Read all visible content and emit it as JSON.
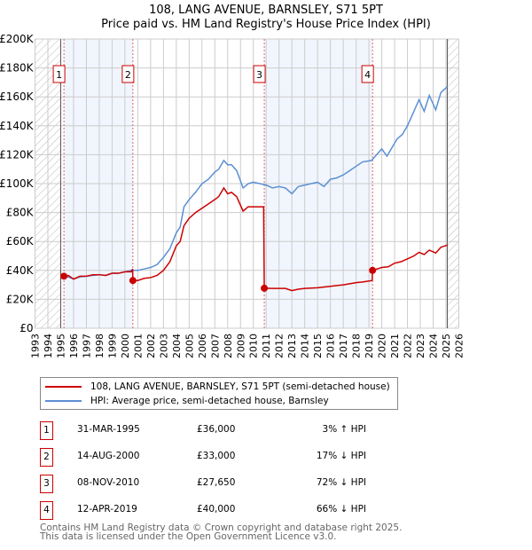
{
  "chart_data": {
    "type": "line",
    "title": "108, LANG AVENUE, BARNSLEY, S71 5PT",
    "subtitle": "Price paid vs. HM Land Registry's House Price Index (HPI)",
    "xlim": [
      1993,
      2026
    ],
    "ylim": [
      0,
      200000
    ],
    "y_ticks": [
      "£0",
      "£20K",
      "£40K",
      "£60K",
      "£80K",
      "£100K",
      "£120K",
      "£140K",
      "£160K",
      "£180K",
      "£200K"
    ],
    "x_ticks": [
      "1993",
      "1994",
      "1995",
      "1996",
      "1997",
      "1998",
      "1999",
      "2000",
      "2001",
      "2002",
      "2003",
      "2004",
      "2005",
      "2006",
      "2007",
      "2008",
      "2009",
      "2010",
      "2011",
      "2012",
      "2013",
      "2014",
      "2015",
      "2016",
      "2017",
      "2018",
      "2019",
      "2020",
      "2021",
      "2022",
      "2023",
      "2024",
      "2025",
      "2026"
    ],
    "grid": true,
    "series": [
      {
        "name": "108, LANG AVENUE, BARNSLEY, S71 5PT (semi-detached house)",
        "color": "#cc0000",
        "x": [
          1995.25,
          1995.6,
          1996,
          1996.5,
          1997,
          1997.5,
          1998,
          1998.5,
          1999,
          1999.5,
          2000,
          2000.5,
          2000.6,
          2000.62,
          2001,
          2001.5,
          2002,
          2002.5,
          2003,
          2003.5,
          2004,
          2004.3,
          2004.6,
          2005,
          2005.5,
          2006,
          2006.5,
          2007,
          2007.3,
          2007.7,
          2008,
          2008.3,
          2008.7,
          2009.2,
          2009.6,
          2010,
          2010.5,
          2010.8,
          2010.85,
          2011.5,
          2012,
          2012.5,
          2013,
          2013.5,
          2014,
          2015,
          2016,
          2017,
          2018,
          2018.5,
          2019.25,
          2019.28,
          2020,
          2020.5,
          2021,
          2021.5,
          2022,
          2022.5,
          2022.9,
          2023.3,
          2023.7,
          2024.2,
          2024.6,
          2025.1
        ],
        "y": [
          36000,
          36500,
          34000,
          36000,
          36000,
          37000,
          37000,
          36500,
          38000,
          38000,
          39000,
          39000,
          41000,
          33000,
          33000,
          34500,
          35000,
          36500,
          40000,
          46000,
          57000,
          60000,
          71000,
          76000,
          80000,
          83000,
          86000,
          89000,
          91000,
          97000,
          93000,
          94000,
          91000,
          81000,
          84000,
          84000,
          84000,
          84000,
          27650,
          27500,
          27500,
          27500,
          26000,
          27000,
          27500,
          28000,
          29000,
          30000,
          31500,
          32000,
          33000,
          40000,
          42000,
          42500,
          45000,
          46000,
          48000,
          50000,
          52500,
          51000,
          54000,
          52000,
          56000,
          57500
        ]
      },
      {
        "name": "HPI: Average price, semi-detached house, Barnsley",
        "color": "#5b8fd4",
        "x": [
          1995.25,
          1995.6,
          1996,
          1996.5,
          1997,
          1997.5,
          1998,
          1998.5,
          1999,
          1999.5,
          2000,
          2000.5,
          2001,
          2001.5,
          2002,
          2002.5,
          2003,
          2003.5,
          2004,
          2004.3,
          2004.6,
          2005,
          2005.5,
          2006,
          2006.5,
          2007,
          2007.3,
          2007.7,
          2008,
          2008.3,
          2008.7,
          2009.2,
          2009.6,
          2010,
          2010.5,
          2011,
          2011.5,
          2012,
          2012.5,
          2013,
          2013.5,
          2014,
          2014.5,
          2015,
          2015.5,
          2016,
          2016.5,
          2017,
          2017.5,
          2018,
          2018.5,
          2019.2,
          2019.6,
          2020,
          2020.4,
          2020.8,
          2021.2,
          2021.6,
          2022,
          2022.5,
          2022.9,
          2023.3,
          2023.7,
          2024.2,
          2024.6,
          2025.1
        ],
        "y": [
          35000,
          35500,
          34000,
          35500,
          36000,
          36500,
          37000,
          36500,
          38000,
          38000,
          39000,
          40000,
          40000,
          41000,
          42000,
          44000,
          49000,
          55000,
          66000,
          70000,
          84000,
          89000,
          94000,
          100000,
          103000,
          108000,
          110000,
          116000,
          113000,
          113000,
          109000,
          97000,
          100000,
          101000,
          100000,
          99000,
          97000,
          98000,
          97000,
          93000,
          98000,
          99000,
          100000,
          101000,
          98000,
          103000,
          104000,
          106000,
          109000,
          112000,
          115000,
          116000,
          120000,
          124000,
          119000,
          125000,
          131000,
          134000,
          140000,
          150000,
          158000,
          150000,
          161000,
          151000,
          163000,
          167000
        ]
      }
    ],
    "transactions": [
      {
        "id": "1",
        "date": "31-MAR-1995",
        "x": 1995.25,
        "price": "£36,000",
        "value": 36000,
        "hpi": "3% ↑ HPI"
      },
      {
        "id": "2",
        "date": "14-AUG-2000",
        "x": 2000.62,
        "price": "£33,000",
        "value": 33000,
        "hpi": "17% ↓ HPI"
      },
      {
        "id": "3",
        "date": "08-NOV-2010",
        "x": 2010.85,
        "price": "£27,650",
        "value": 27650,
        "hpi": "72% ↓ HPI"
      },
      {
        "id": "4",
        "date": "12-APR-2019",
        "x": 2019.28,
        "price": "£40,000",
        "value": 40000,
        "hpi": "66% ↓ HPI"
      }
    ],
    "shaded_ranges": [
      [
        1995.25,
        2000.62
      ],
      [
        2010.85,
        2019.28
      ]
    ],
    "hatched_ranges": [
      [
        1993,
        1995
      ],
      [
        2025.1,
        2026
      ]
    ],
    "legend_placement": "bottom"
  },
  "footer": {
    "line1": "Contains HM Land Registry data © Crown copyright and database right 2025.",
    "line2": "This data is licensed under the Open Government Licence v3.0."
  }
}
